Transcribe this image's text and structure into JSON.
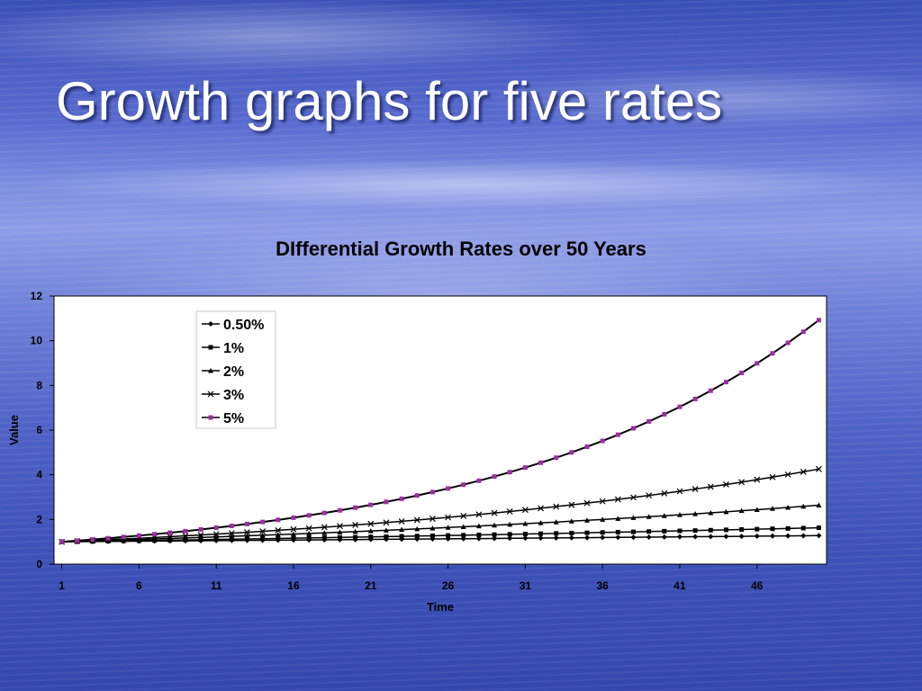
{
  "slide": {
    "title": "Growth graphs for five rates"
  },
  "chart_data": {
    "type": "line",
    "title": "DIfferential Growth Rates over 50 Years",
    "xlabel": "Time",
    "ylabel": "Value",
    "x": [
      1,
      2,
      3,
      4,
      5,
      6,
      7,
      8,
      9,
      10,
      11,
      12,
      13,
      14,
      15,
      16,
      17,
      18,
      19,
      20,
      21,
      22,
      23,
      24,
      25,
      26,
      27,
      28,
      29,
      30,
      31,
      32,
      33,
      34,
      35,
      36,
      37,
      38,
      39,
      40,
      41,
      42,
      43,
      44,
      45,
      46,
      47,
      48,
      49,
      50
    ],
    "xticks": [
      "1",
      "6",
      "11",
      "16",
      "21",
      "26",
      "31",
      "36",
      "41",
      "46"
    ],
    "yticks": [
      "0",
      "2",
      "4",
      "6",
      "8",
      "10",
      "12"
    ],
    "ylim": [
      0,
      12
    ],
    "grid": false,
    "legend": "top-left-inside",
    "series": [
      {
        "name": "0.50%",
        "marker": "diamond",
        "color": "#000000",
        "values": [
          1,
          1.005,
          1.01,
          1.015,
          1.02,
          1.025,
          1.03,
          1.036,
          1.041,
          1.046,
          1.051,
          1.056,
          1.062,
          1.067,
          1.072,
          1.078,
          1.083,
          1.088,
          1.094,
          1.099,
          1.105,
          1.11,
          1.116,
          1.122,
          1.127,
          1.133,
          1.139,
          1.144,
          1.15,
          1.156,
          1.161,
          1.167,
          1.173,
          1.179,
          1.185,
          1.191,
          1.197,
          1.203,
          1.209,
          1.215,
          1.221,
          1.227,
          1.233,
          1.239,
          1.245,
          1.252,
          1.258,
          1.264,
          1.27,
          1.277
        ]
      },
      {
        "name": "1%",
        "marker": "square",
        "color": "#000000",
        "values": [
          1,
          1.01,
          1.02,
          1.03,
          1.041,
          1.051,
          1.062,
          1.072,
          1.083,
          1.094,
          1.105,
          1.116,
          1.127,
          1.138,
          1.149,
          1.161,
          1.173,
          1.184,
          1.196,
          1.208,
          1.22,
          1.232,
          1.245,
          1.257,
          1.27,
          1.282,
          1.295,
          1.308,
          1.321,
          1.335,
          1.348,
          1.361,
          1.375,
          1.389,
          1.403,
          1.417,
          1.431,
          1.445,
          1.46,
          1.474,
          1.489,
          1.504,
          1.519,
          1.534,
          1.549,
          1.565,
          1.581,
          1.596,
          1.612,
          1.628
        ]
      },
      {
        "name": "2%",
        "marker": "triangle",
        "color": "#000000",
        "values": [
          1,
          1.02,
          1.04,
          1.061,
          1.082,
          1.104,
          1.126,
          1.149,
          1.172,
          1.195,
          1.219,
          1.243,
          1.268,
          1.294,
          1.319,
          1.346,
          1.373,
          1.4,
          1.428,
          1.457,
          1.486,
          1.516,
          1.546,
          1.577,
          1.608,
          1.641,
          1.673,
          1.707,
          1.741,
          1.776,
          1.811,
          1.848,
          1.885,
          1.922,
          1.961,
          2,
          2.04,
          2.081,
          2.122,
          2.165,
          2.208,
          2.252,
          2.297,
          2.343,
          2.39,
          2.438,
          2.487,
          2.536,
          2.587,
          2.639
        ]
      },
      {
        "name": "3%",
        "marker": "x",
        "color": "#000000",
        "values": [
          1,
          1.03,
          1.061,
          1.093,
          1.126,
          1.159,
          1.194,
          1.23,
          1.267,
          1.305,
          1.344,
          1.384,
          1.426,
          1.469,
          1.513,
          1.558,
          1.605,
          1.653,
          1.702,
          1.754,
          1.806,
          1.86,
          1.916,
          1.974,
          2.033,
          2.094,
          2.157,
          2.221,
          2.288,
          2.357,
          2.427,
          2.5,
          2.575,
          2.652,
          2.732,
          2.814,
          2.898,
          2.985,
          3.075,
          3.167,
          3.262,
          3.36,
          3.461,
          3.565,
          3.671,
          3.782,
          3.895,
          4.012,
          4.132,
          4.256
        ]
      },
      {
        "name": "5%",
        "marker": "square",
        "color": "#000000",
        "markerColor": "#9b2fa0",
        "values": [
          1,
          1.05,
          1.103,
          1.158,
          1.216,
          1.276,
          1.34,
          1.407,
          1.477,
          1.551,
          1.629,
          1.71,
          1.796,
          1.886,
          1.98,
          2.079,
          2.183,
          2.292,
          2.407,
          2.527,
          2.653,
          2.786,
          2.925,
          3.072,
          3.225,
          3.386,
          3.556,
          3.733,
          3.92,
          4.116,
          4.322,
          4.538,
          4.765,
          5.003,
          5.253,
          5.516,
          5.792,
          6.081,
          6.385,
          6.705,
          7.04,
          7.392,
          7.762,
          8.15,
          8.557,
          8.985,
          9.434,
          9.906,
          10.401,
          10.921
        ]
      }
    ]
  }
}
